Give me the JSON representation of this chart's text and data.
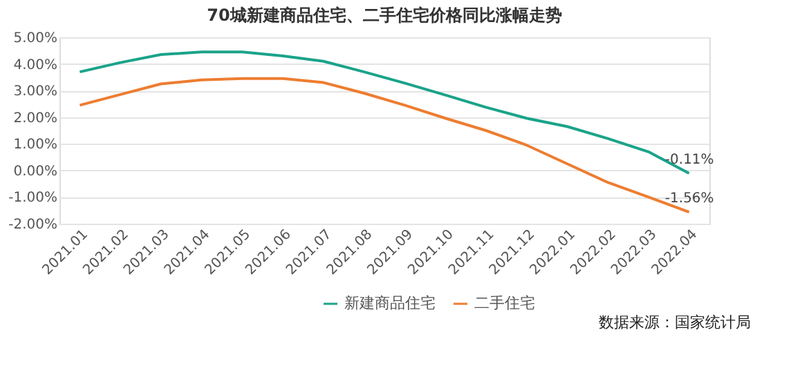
{
  "chart_data": {
    "type": "line",
    "title": "70城新建商品住宅、二手住宅价格同比涨幅走势",
    "categories": [
      "2021.01",
      "2021.02",
      "2021.03",
      "2021.04",
      "2021.05",
      "2021.06",
      "2021.07",
      "2021.08",
      "2021.09",
      "2021.10",
      "2021.11",
      "2021.12",
      "2022.01",
      "2022.02",
      "2022.03",
      "2022.04"
    ],
    "series": [
      {
        "name": "新建商品住宅",
        "color": "#1aa38a",
        "values": [
          3.7,
          4.05,
          4.35,
          4.45,
          4.45,
          4.3,
          4.1,
          3.7,
          3.28,
          2.83,
          2.37,
          1.96,
          1.65,
          1.2,
          0.7,
          -0.11
        ]
      },
      {
        "name": "二手住宅",
        "color": "#ed7d31",
        "values": [
          2.45,
          2.85,
          3.25,
          3.4,
          3.45,
          3.45,
          3.3,
          2.9,
          2.45,
          1.96,
          1.5,
          0.95,
          0.25,
          -0.45,
          -1.0,
          -1.56
        ]
      }
    ],
    "ylim": [
      -2,
      5
    ],
    "yticks": [
      {
        "value": -2,
        "label": "-2.00%"
      },
      {
        "value": -1,
        "label": "-1.00%"
      },
      {
        "value": 0,
        "label": "0.00%"
      },
      {
        "value": 1,
        "label": "1.00%"
      },
      {
        "value": 2,
        "label": "2.00%"
      },
      {
        "value": 3,
        "label": "3.00%"
      },
      {
        "value": 4,
        "label": "4.00%"
      },
      {
        "value": 5,
        "label": "5.00%"
      }
    ],
    "grid": "y",
    "legend": "bottom",
    "marker": "none",
    "line_style": "solid",
    "annotations": [
      {
        "text": "-0.11%",
        "x": "2022.04",
        "y": -0.11
      },
      {
        "text": "-1.56%",
        "x": "2022.04",
        "y": -1.56
      },
      "数据来源：国家统计局"
    ]
  }
}
